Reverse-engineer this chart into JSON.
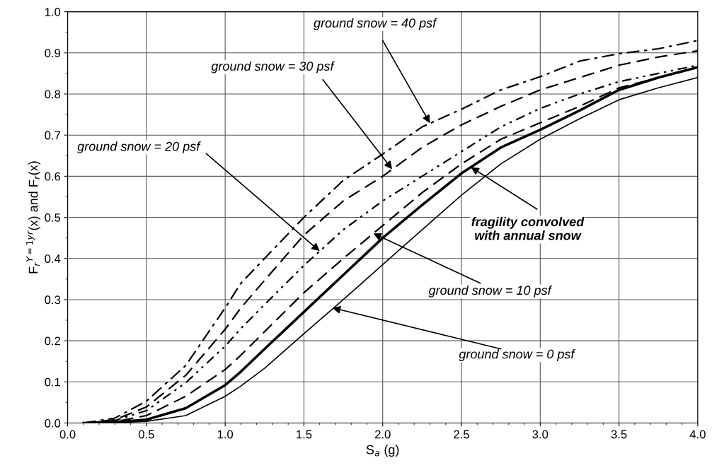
{
  "chart_data": {
    "type": "line",
    "xlabel": "S$_{a}$ (g)",
    "ylabel": "F$_{r}$$^{Y=1yr}$(x) and F$_{r}$(x)",
    "x": [
      0.1,
      0.3,
      0.5,
      0.75,
      1.0,
      1.1,
      1.25,
      1.5,
      1.75,
      2.0,
      2.25,
      2.5,
      2.75,
      3.0,
      3.25,
      3.5,
      3.75,
      4.0
    ],
    "series": [
      {
        "color": "#000000",
        "line_style": "solid",
        "values": [
          0,
          0.001,
          0.004,
          0.018,
          0.065,
          0.09,
          0.133,
          0.217,
          0.3,
          0.385,
          0.47,
          0.554,
          0.63,
          0.69,
          0.74,
          0.786,
          0.815,
          0.84
        ]
      },
      {
        "color": "#000000",
        "line_style": "solid",
        "values": [
          0,
          0.002,
          0.008,
          0.036,
          0.092,
          0.125,
          0.18,
          0.27,
          0.36,
          0.45,
          0.53,
          0.607,
          0.67,
          0.713,
          0.76,
          0.81,
          0.84,
          0.865
        ]
      },
      {
        "color": "#000000",
        "line_style": "dashed",
        "values": [
          0,
          0.003,
          0.018,
          0.065,
          0.13,
          0.165,
          0.222,
          0.317,
          0.4,
          0.48,
          0.56,
          0.63,
          0.69,
          0.73,
          0.77,
          0.815,
          0.84,
          0.865
        ]
      },
      {
        "color": "#000000",
        "line_style": "dotted",
        "values": [
          0,
          0.006,
          0.03,
          0.098,
          0.187,
          0.23,
          0.288,
          0.383,
          0.47,
          0.54,
          0.6,
          0.66,
          0.72,
          0.765,
          0.8,
          0.83,
          0.85,
          0.87
        ]
      },
      {
        "color": "#000000",
        "line_style": "dashed",
        "values": [
          0,
          0.008,
          0.039,
          0.116,
          0.228,
          0.28,
          0.347,
          0.457,
          0.54,
          0.6,
          0.67,
          0.725,
          0.77,
          0.81,
          0.84,
          0.87,
          0.89,
          0.905
        ]
      },
      {
        "color": "#000000",
        "line_style": "dashdot",
        "values": [
          0,
          0.012,
          0.053,
          0.14,
          0.28,
          0.34,
          0.4,
          0.5,
          0.59,
          0.654,
          0.72,
          0.763,
          0.81,
          0.842,
          0.88,
          0.898,
          0.91,
          0.93
        ]
      }
    ],
    "annotations": [
      {
        "text": "ground snow = 40 psf",
        "x": 2.3,
        "y": 0.729
      },
      {
        "text": "ground snow = 30 psf",
        "x": 2.06,
        "y": 0.617
      },
      {
        "text": "ground snow = 20 psf",
        "x": 1.6,
        "y": 0.418
      },
      {
        "text": "fragility convolved\nwith annual snow",
        "x": 2.56,
        "y": 0.622
      },
      {
        "text": "ground snow = 10 psf",
        "x": 1.94,
        "y": 0.461
      },
      {
        "text": "ground snow = 0 psf",
        "x": 1.68,
        "y": 0.28
      }
    ],
    "xlim": [
      0,
      4
    ],
    "ylim": [
      0,
      1
    ],
    "xticks": [
      {
        "value": 0,
        "label": "0.0"
      },
      {
        "value": 0.5,
        "label": "0.5"
      },
      {
        "value": 1,
        "label": "1.0"
      },
      {
        "value": 1.5,
        "label": "1.5"
      },
      {
        "value": 2,
        "label": "2.0"
      },
      {
        "value": 2.5,
        "label": "2.5"
      },
      {
        "value": 3,
        "label": "3.0"
      },
      {
        "value": 3.5,
        "label": "3.5"
      },
      {
        "value": 4,
        "label": "4.0"
      }
    ],
    "yticks": [
      {
        "value": 0,
        "label": "0.0"
      },
      {
        "value": 0.1,
        "label": "0.1"
      },
      {
        "value": 0.2,
        "label": "0.2"
      },
      {
        "value": 0.3,
        "label": "0.3"
      },
      {
        "value": 0.4,
        "label": "0.4"
      },
      {
        "value": 0.5,
        "label": "0.5"
      },
      {
        "value": 0.6,
        "label": "0.6"
      },
      {
        "value": 0.7,
        "label": "0.7"
      },
      {
        "value": 0.8,
        "label": "0.8"
      },
      {
        "value": 0.9,
        "label": "0.9"
      },
      {
        "value": 1,
        "label": "1.0"
      }
    ],
    "grid": true,
    "legend": false,
    "marker": "none"
  }
}
